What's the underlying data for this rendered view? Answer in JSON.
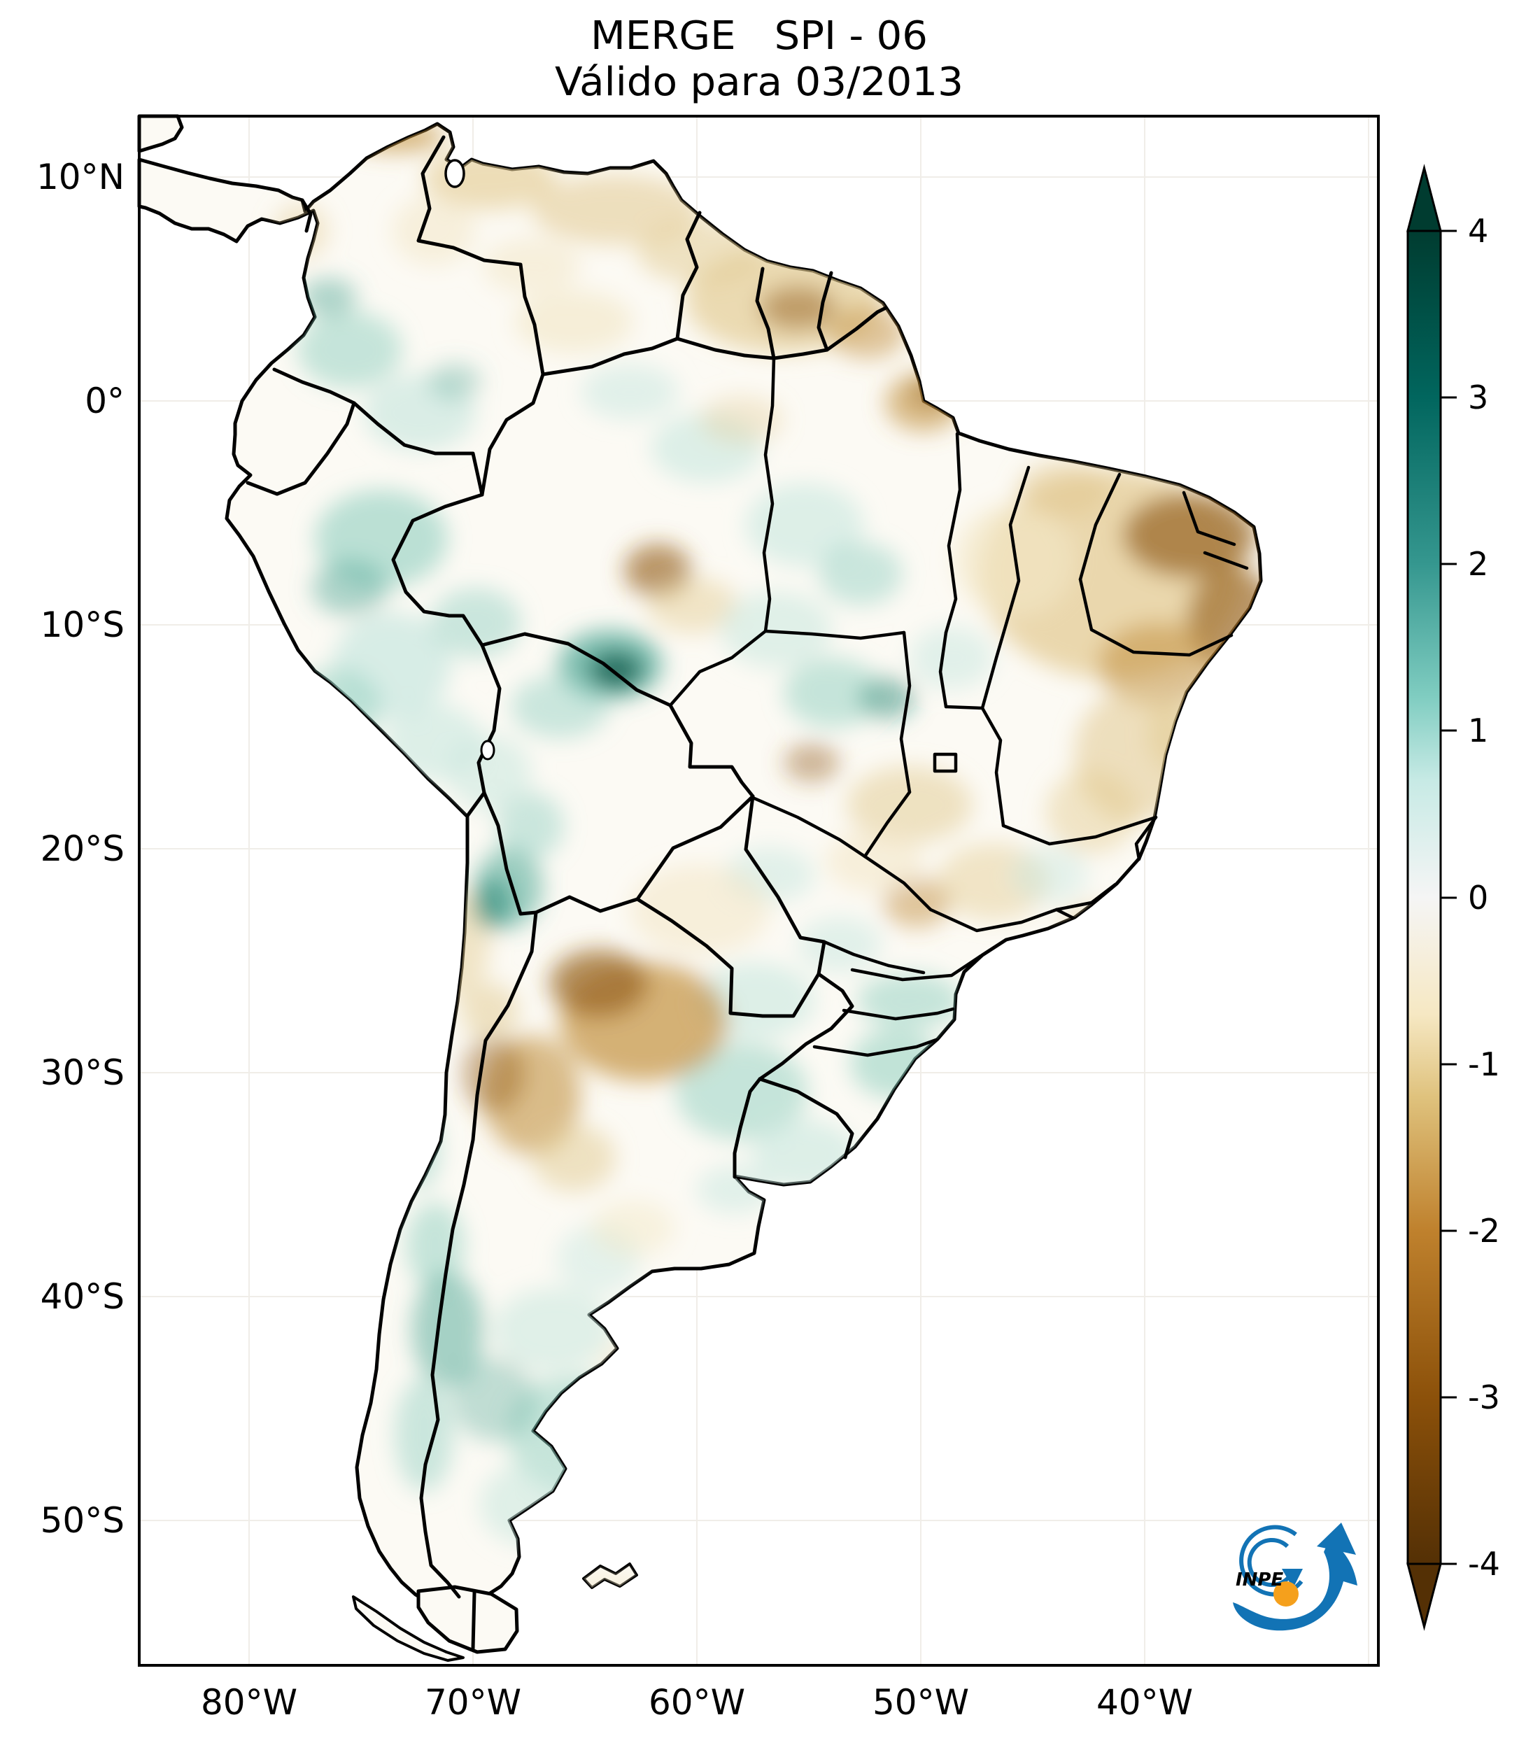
{
  "title": {
    "line1": "MERGE   SPI - 06",
    "line2": "Válido para 03/2013"
  },
  "axes": {
    "lat_ticks": [
      "10°N",
      "0°",
      "10°S",
      "20°S",
      "30°S",
      "40°S",
      "50°S"
    ],
    "lon_ticks": [
      "80°W",
      "70°W",
      "60°W",
      "50°W",
      "40°W"
    ]
  },
  "colorbar": {
    "variable": "SPI-06",
    "range": [
      -4,
      4
    ],
    "extend": "both",
    "ticks": [
      "4",
      "3",
      "2",
      "1",
      "0",
      "-1",
      "-2",
      "-3",
      "-4"
    ],
    "stops": [
      {
        "v": 4,
        "color": "#003c30"
      },
      {
        "v": 3,
        "color": "#01665e"
      },
      {
        "v": 2,
        "color": "#35978f"
      },
      {
        "v": 1.2,
        "color": "#80cdc1"
      },
      {
        "v": 0.7,
        "color": "#c7eae5"
      },
      {
        "v": 0,
        "color": "#f5f5f5"
      },
      {
        "v": -0.7,
        "color": "#f6e8c3"
      },
      {
        "v": -1.2,
        "color": "#dfc27d"
      },
      {
        "v": -2,
        "color": "#bf812d"
      },
      {
        "v": -3,
        "color": "#8c510a"
      },
      {
        "v": -4,
        "color": "#543005"
      }
    ]
  },
  "map": {
    "region": "South America",
    "land_color": "#fcfaf4",
    "border_color": "#000000",
    "grid_color": "#f0ede8",
    "palette": {
      "teal_pale": "#c8e7df",
      "teal_light": "#8fcfc0",
      "teal_med": "#4da796",
      "teal_dark": "#17806e",
      "teal_darkest": "#0a5a4a",
      "tan_pale": "#f2e6c4",
      "tan_light": "#e2c98f",
      "tan_med": "#c3923f",
      "brown_dark": "#96621f",
      "brown_darkest": "#6a4410"
    }
  },
  "logo": {
    "text": "INPE",
    "blue": "#1273b5",
    "orange": "#f5a01c"
  }
}
